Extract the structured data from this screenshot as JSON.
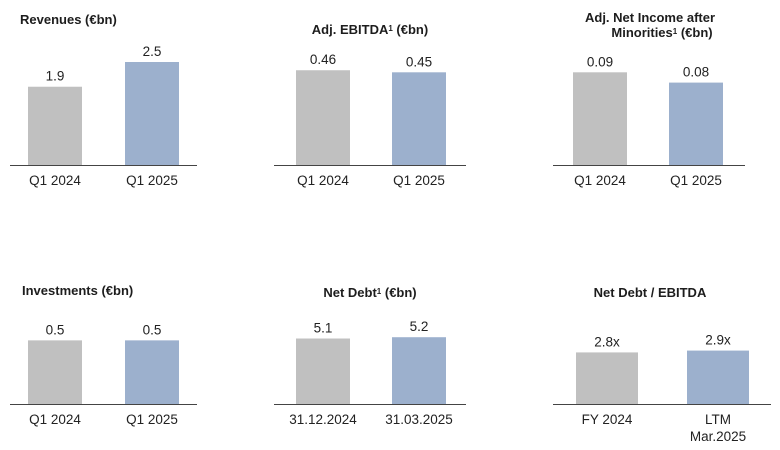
{
  "colors": {
    "prior": "#c0c0c0",
    "current": "#9cb0cd",
    "axis": "#444444"
  },
  "chart_data": [
    {
      "type": "bar",
      "title": "Revenues (€bn)",
      "categories": [
        "Q1 2024",
        "Q1 2025"
      ],
      "values": [
        1.9,
        2.5
      ],
      "value_labels": [
        "1.9",
        "2.5"
      ],
      "ylim": [
        0,
        2.5
      ]
    },
    {
      "type": "bar",
      "title": "Adj. EBITDA",
      "title_sup": "1",
      "title_suffix": " (€bn)",
      "categories": [
        "Q1 2024",
        "Q1 2025"
      ],
      "values": [
        0.46,
        0.45
      ],
      "value_labels": [
        "0.46",
        "0.45"
      ],
      "ylim": [
        0,
        0.5
      ]
    },
    {
      "type": "bar",
      "title": "Adj. Net Income after",
      "title_line2": "Minorities",
      "title_sup": "1",
      "title_suffix": " (€bn)",
      "categories": [
        "Q1 2024",
        "Q1 2025"
      ],
      "values": [
        0.09,
        0.08
      ],
      "value_labels": [
        "0.09",
        "0.08"
      ],
      "ylim": [
        0,
        0.1
      ]
    },
    {
      "type": "bar",
      "title": "Investments (€bn)",
      "categories": [
        "Q1 2024",
        "Q1 2025"
      ],
      "values": [
        0.5,
        0.5
      ],
      "value_labels": [
        "0.5",
        "0.5"
      ],
      "ylim": [
        0,
        0.55
      ]
    },
    {
      "type": "bar",
      "title": "Net Debt",
      "title_sup": "1",
      "title_suffix": " (€bn)",
      "categories": [
        "31.12.2024",
        "31.03.2025"
      ],
      "values": [
        5.1,
        5.2
      ],
      "value_labels": [
        "5.1",
        "5.2"
      ],
      "ylim": [
        0,
        5.45
      ]
    },
    {
      "type": "bar",
      "title": "Net Debt / EBITDA",
      "categories": [
        "FY 2024",
        "LTM Mar.2025"
      ],
      "values": [
        2.8,
        2.9
      ],
      "value_labels": [
        "2.8x",
        "2.9x"
      ],
      "ylim": [
        0,
        3.8
      ]
    }
  ]
}
